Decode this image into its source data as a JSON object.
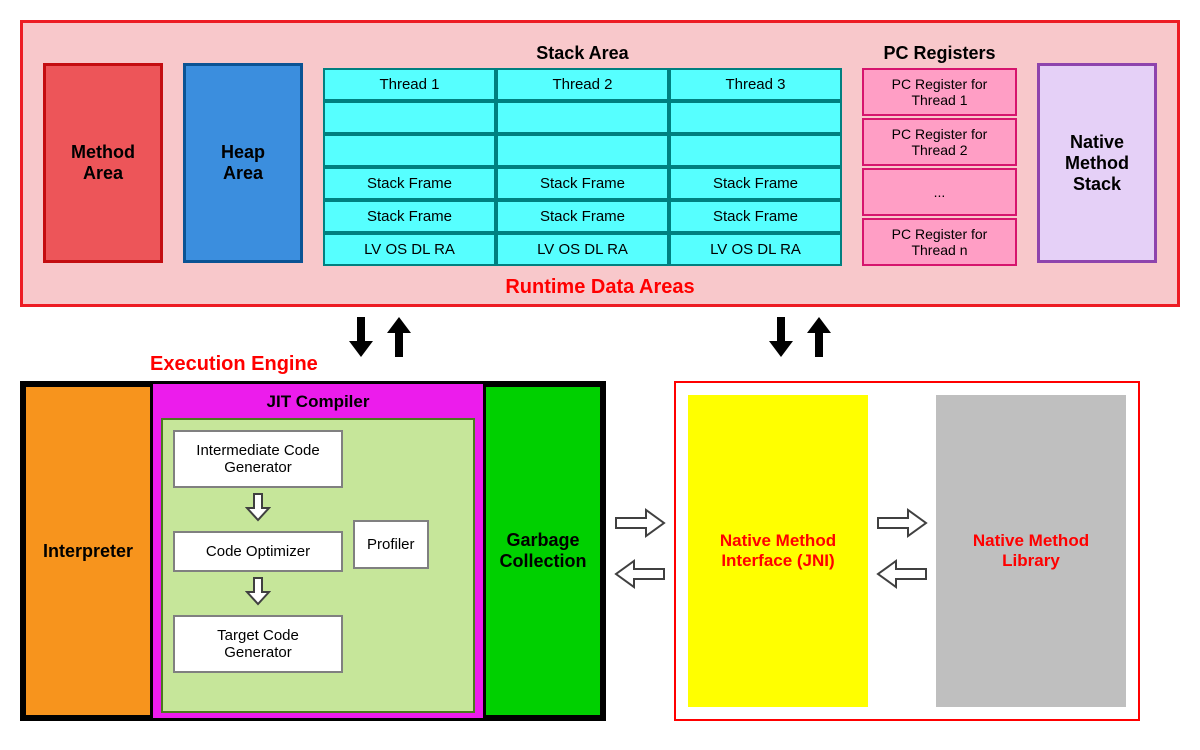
{
  "runtime_data_areas": {
    "title": "Runtime Data Areas",
    "title_color": "#ff0000",
    "background_color": "#f8c8cb",
    "border_color": "#ed1c24",
    "method_area": {
      "label": "Method\nArea",
      "bg_color": "#ed5559",
      "border_color": "#c40d11"
    },
    "heap_area": {
      "label": "Heap\nArea",
      "bg_color": "#3b8ede",
      "border_color": "#0b5394"
    },
    "stack_area": {
      "title": "Stack Area",
      "cell_bg": "#56ffff",
      "cell_border": "#008080",
      "rows": [
        [
          "Thread 1",
          "Thread 2",
          "Thread 3"
        ],
        [
          "",
          "",
          ""
        ],
        [
          "",
          "",
          ""
        ],
        [
          "Stack Frame",
          "Stack Frame",
          "Stack Frame"
        ],
        [
          "Stack Frame",
          "Stack Frame",
          "Stack Frame"
        ],
        [
          "LV OS DL RA",
          "LV OS DL RA",
          "LV OS DL RA"
        ]
      ]
    },
    "pc_registers": {
      "title": "PC Registers",
      "cell_bg": "#ff9ec5",
      "cell_border": "#d6156e",
      "items": [
        "PC Register for Thread 1",
        "PC Register for Thread 2",
        "...",
        "PC Register for Thread n"
      ]
    },
    "native_method_stack": {
      "label": "Native\nMethod\nStack",
      "bg_color": "#e5d0f7",
      "border_color": "#8e44ad"
    }
  },
  "execution_engine": {
    "label": "Execution Engine",
    "label_color": "#ff0000",
    "interpreter": {
      "label": "Interpreter",
      "bg_color": "#f7941d",
      "border_color": "#000000"
    },
    "jit_compiler": {
      "title": "JIT Compiler",
      "bg_color": "#ec1cec",
      "border_color": "#000000",
      "inner_bg": "#c6e69a",
      "inner_border": "#4b7a1f",
      "box_border": "#808080",
      "intermediate_label": "Intermediate Code Generator",
      "optimizer_label": "Code Optimizer",
      "target_label": "Target Code Generator",
      "profiler_label": "Profiler"
    },
    "garbage_collection": {
      "label": "Garbage\nCollection",
      "bg_color": "#00d000",
      "border_color": "#000000"
    }
  },
  "native_section": {
    "border_color": "#ff0000",
    "jni": {
      "label": "Native Method Interface (JNI)",
      "bg_color": "#ffff00",
      "text_color": "#ff0000"
    },
    "library": {
      "label": "Native Method Library",
      "bg_color": "#bfbfbf",
      "text_color": "#ff0000"
    }
  },
  "arrows": {
    "fill": "#000000",
    "hollow_stroke": "#404040"
  }
}
